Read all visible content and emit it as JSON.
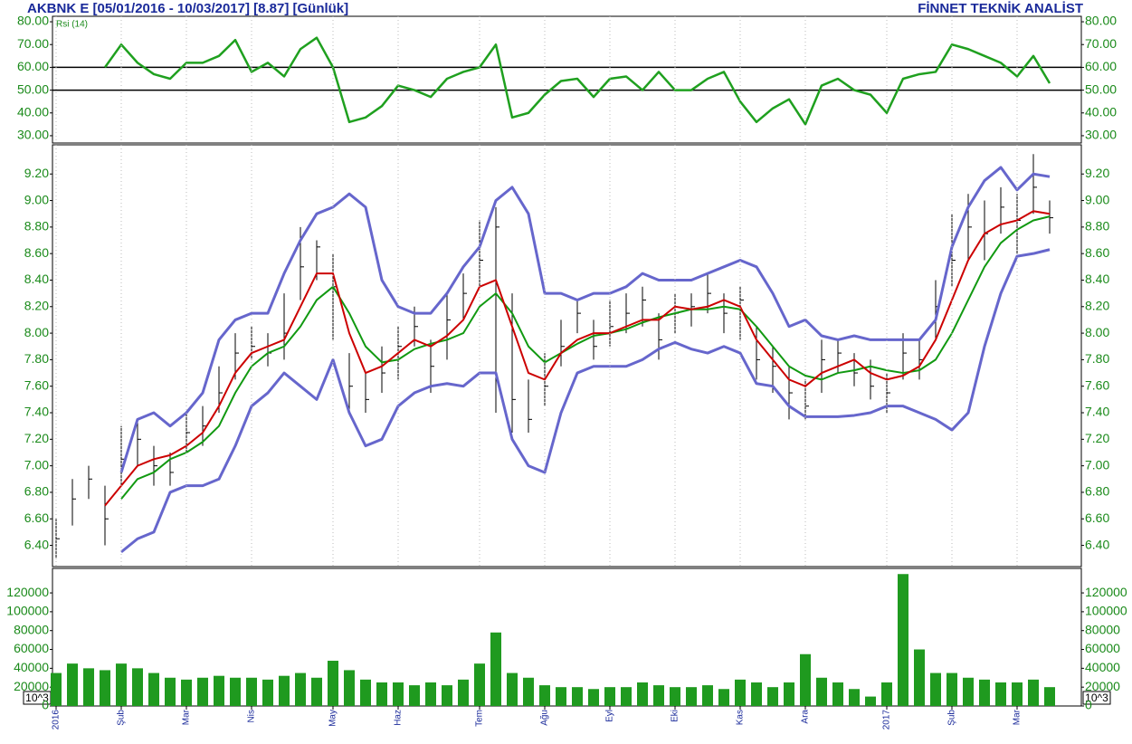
{
  "header": {
    "title": "AKBNK E  [05/01/2016 - 10/03/2017]  [8.87]  [Günlük]",
    "brand": "FİNNET TEKNİK ANALİST"
  },
  "chart_data": [
    {
      "type": "line",
      "label": "Rsi (14)",
      "color": "#1fa01f",
      "values": [
        null,
        null,
        null,
        60,
        70,
        62,
        57,
        55,
        62,
        62,
        65,
        72,
        58,
        62,
        56,
        68,
        73,
        60,
        36,
        38,
        43,
        52,
        50,
        47,
        55,
        58,
        60,
        70,
        38,
        40,
        48,
        54,
        55,
        47,
        55,
        56,
        50,
        58,
        50,
        50,
        55,
        58,
        45,
        36,
        42,
        46,
        35,
        52,
        55,
        50,
        48,
        40,
        55,
        57,
        58,
        70,
        68,
        65,
        62,
        56,
        65,
        53
      ],
      "reference_lines": [
        60,
        50
      ],
      "ylim": [
        26.8,
        82.4
      ],
      "yticks": [
        {
          "value": 30,
          "label": "30.00"
        },
        {
          "value": 40,
          "label": "40.00"
        },
        {
          "value": 50,
          "label": "50.00"
        },
        {
          "value": 60,
          "label": "60.00"
        },
        {
          "value": 70,
          "label": "70.00"
        },
        {
          "value": 80,
          "label": "80.00"
        }
      ]
    },
    {
      "type": "ohlc",
      "color": "#000000",
      "high": [
        6.6,
        6.9,
        7.0,
        6.85,
        7.3,
        7.35,
        7.15,
        7.1,
        7.4,
        7.45,
        7.75,
        8.0,
        8.05,
        8.0,
        8.3,
        8.8,
        8.7,
        8.6,
        7.85,
        7.7,
        7.9,
        8.05,
        8.2,
        7.95,
        8.3,
        8.45,
        8.85,
        8.95,
        8.3,
        7.65,
        7.85,
        8.1,
        8.25,
        8.1,
        8.25,
        8.3,
        8.35,
        8.15,
        8.3,
        8.3,
        8.45,
        8.3,
        8.35,
        8.05,
        7.9,
        7.75,
        7.65,
        7.95,
        7.95,
        7.85,
        7.8,
        7.7,
        8.0,
        7.95,
        8.4,
        8.9,
        9.05,
        9.0,
        9.1,
        9.05,
        9.35,
        9.0
      ],
      "low": [
        6.3,
        6.55,
        6.75,
        6.4,
        6.85,
        7.0,
        6.85,
        6.85,
        7.1,
        7.15,
        7.4,
        7.65,
        7.8,
        7.75,
        7.8,
        8.25,
        8.4,
        7.95,
        7.4,
        7.4,
        7.55,
        7.65,
        7.9,
        7.55,
        7.8,
        8.1,
        8.35,
        7.4,
        7.25,
        7.25,
        7.45,
        7.75,
        8.0,
        7.8,
        7.9,
        8.0,
        8.05,
        7.8,
        8.0,
        8.05,
        8.15,
        8.0,
        7.95,
        7.65,
        7.55,
        7.35,
        7.35,
        7.55,
        7.7,
        7.6,
        7.5,
        7.4,
        7.65,
        7.65,
        7.95,
        8.35,
        8.55,
        8.55,
        8.75,
        8.6,
        8.9,
        8.75
      ],
      "close": [
        6.45,
        6.75,
        6.9,
        6.6,
        7.05,
        7.2,
        7.0,
        6.95,
        7.25,
        7.3,
        7.55,
        7.85,
        7.9,
        7.85,
        8.0,
        8.5,
        8.65,
        8.35,
        7.6,
        7.5,
        7.7,
        7.9,
        8.05,
        7.75,
        8.1,
        8.3,
        8.55,
        8.8,
        7.5,
        7.35,
        7.6,
        7.9,
        8.15,
        7.9,
        8.05,
        8.15,
        8.25,
        7.95,
        8.15,
        8.2,
        8.3,
        8.15,
        8.25,
        7.8,
        7.75,
        7.55,
        7.45,
        7.8,
        7.85,
        7.7,
        7.6,
        7.55,
        7.85,
        7.8,
        8.2,
        8.55,
        8.8,
        8.75,
        8.95,
        8.85,
        9.1,
        8.87
      ],
      "lines": [
        {
          "color": "#6666cc",
          "values": [
            null,
            null,
            null,
            null,
            6.95,
            7.35,
            7.4,
            7.3,
            7.4,
            7.55,
            7.95,
            8.1,
            8.15,
            8.15,
            8.45,
            8.7,
            8.9,
            8.95,
            9.05,
            8.95,
            8.4,
            8.2,
            8.15,
            8.15,
            8.3,
            8.5,
            8.65,
            9.0,
            9.1,
            8.9,
            8.3,
            8.3,
            8.25,
            8.3,
            8.3,
            8.35,
            8.45,
            8.4,
            8.4,
            8.4,
            8.45,
            8.5,
            8.55,
            8.5,
            8.3,
            8.05,
            8.1,
            7.98,
            7.95,
            7.98,
            7.95,
            7.95,
            7.95,
            7.95,
            8.1,
            8.65,
            8.95,
            9.15,
            9.25,
            9.08,
            9.2,
            9.18
          ]
        },
        {
          "color": "#6666cc",
          "values": [
            null,
            null,
            null,
            null,
            6.35,
            6.45,
            6.5,
            6.8,
            6.85,
            6.85,
            6.9,
            7.15,
            7.45,
            7.55,
            7.7,
            7.6,
            7.5,
            7.8,
            7.4,
            7.15,
            7.2,
            7.45,
            7.55,
            7.6,
            7.62,
            7.6,
            7.7,
            7.7,
            7.2,
            7.0,
            6.95,
            7.4,
            7.7,
            7.75,
            7.75,
            7.75,
            7.8,
            7.88,
            7.93,
            7.88,
            7.85,
            7.9,
            7.85,
            7.62,
            7.6,
            7.45,
            7.37,
            7.37,
            7.37,
            7.38,
            7.4,
            7.45,
            7.45,
            7.4,
            7.35,
            7.27,
            7.4,
            7.9,
            8.3,
            8.58,
            8.6,
            8.63
          ]
        },
        {
          "color": "#119911",
          "values": [
            null,
            null,
            null,
            null,
            6.75,
            6.9,
            6.95,
            7.05,
            7.1,
            7.18,
            7.3,
            7.55,
            7.75,
            7.85,
            7.9,
            8.05,
            8.25,
            8.35,
            8.15,
            7.9,
            7.78,
            7.8,
            7.88,
            7.92,
            7.95,
            8.0,
            8.2,
            8.3,
            8.15,
            7.9,
            7.78,
            7.85,
            7.92,
            7.98,
            8.0,
            8.03,
            8.08,
            8.12,
            8.15,
            8.18,
            8.18,
            8.2,
            8.18,
            8.05,
            7.9,
            7.75,
            7.68,
            7.65,
            7.7,
            7.72,
            7.75,
            7.72,
            7.7,
            7.72,
            7.8,
            8.0,
            8.25,
            8.5,
            8.68,
            8.78,
            8.85,
            8.88
          ]
        },
        {
          "color": "#cc0000",
          "values": [
            null,
            null,
            null,
            6.7,
            6.85,
            7.0,
            7.05,
            7.08,
            7.15,
            7.25,
            7.45,
            7.7,
            7.85,
            7.9,
            7.95,
            8.2,
            8.45,
            8.45,
            8.0,
            7.7,
            7.75,
            7.85,
            7.95,
            7.9,
            7.98,
            8.1,
            8.35,
            8.4,
            8.05,
            7.7,
            7.65,
            7.85,
            7.95,
            8.0,
            8.0,
            8.05,
            8.1,
            8.1,
            8.2,
            8.18,
            8.2,
            8.25,
            8.2,
            7.95,
            7.8,
            7.65,
            7.6,
            7.7,
            7.75,
            7.8,
            7.7,
            7.65,
            7.68,
            7.75,
            7.95,
            8.25,
            8.55,
            8.75,
            8.82,
            8.85,
            8.92,
            8.9
          ]
        }
      ],
      "ylim": [
        6.24,
        9.42
      ],
      "yticks": [
        {
          "value": 6.4,
          "label": "6.40"
        },
        {
          "value": 6.6,
          "label": "6.60"
        },
        {
          "value": 6.8,
          "label": "6.80"
        },
        {
          "value": 7.0,
          "label": "7.00"
        },
        {
          "value": 7.2,
          "label": "7.20"
        },
        {
          "value": 7.4,
          "label": "7.40"
        },
        {
          "value": 7.6,
          "label": "7.60"
        },
        {
          "value": 7.8,
          "label": "7.80"
        },
        {
          "value": 8.0,
          "label": "8.00"
        },
        {
          "value": 8.2,
          "label": "8.20"
        },
        {
          "value": 8.4,
          "label": "8.40"
        },
        {
          "value": 8.6,
          "label": "8.60"
        },
        {
          "value": 8.8,
          "label": "8.80"
        },
        {
          "value": 9.0,
          "label": "9.00"
        },
        {
          "value": 9.2,
          "label": "9.20"
        }
      ]
    },
    {
      "type": "bar",
      "color": "#1f9a1f",
      "unit_label": "10^3",
      "categories": [
        "2016",
        null,
        null,
        null,
        "Şub",
        null,
        null,
        null,
        "Mar",
        null,
        null,
        null,
        "Nis",
        null,
        null,
        null,
        null,
        "May",
        null,
        null,
        null,
        "Haz",
        null,
        null,
        null,
        null,
        "Tem",
        null,
        null,
        null,
        "Ağu",
        null,
        null,
        null,
        "Eyl",
        null,
        null,
        null,
        "Eki",
        null,
        null,
        null,
        "Kas",
        null,
        null,
        null,
        "Ara",
        null,
        null,
        null,
        null,
        "2017",
        null,
        null,
        null,
        "Şub",
        null,
        null,
        null,
        "Mar",
        null,
        null
      ],
      "values": [
        35000,
        45000,
        40000,
        38000,
        45000,
        40000,
        35000,
        30000,
        28000,
        30000,
        32000,
        30000,
        30000,
        28000,
        32000,
        35000,
        30000,
        48000,
        38000,
        28000,
        25000,
        25000,
        22000,
        25000,
        22000,
        28000,
        45000,
        78000,
        35000,
        30000,
        22000,
        20000,
        20000,
        18000,
        20000,
        20000,
        25000,
        22000,
        20000,
        20000,
        22000,
        18000,
        28000,
        25000,
        20000,
        25000,
        55000,
        30000,
        25000,
        18000,
        10000,
        25000,
        140000,
        60000,
        35000,
        35000,
        30000,
        28000,
        25000,
        25000,
        28000,
        20000
      ],
      "ylim": [
        0,
        146000
      ],
      "yticks": [
        0,
        20000,
        40000,
        60000,
        80000,
        100000,
        120000
      ]
    }
  ]
}
